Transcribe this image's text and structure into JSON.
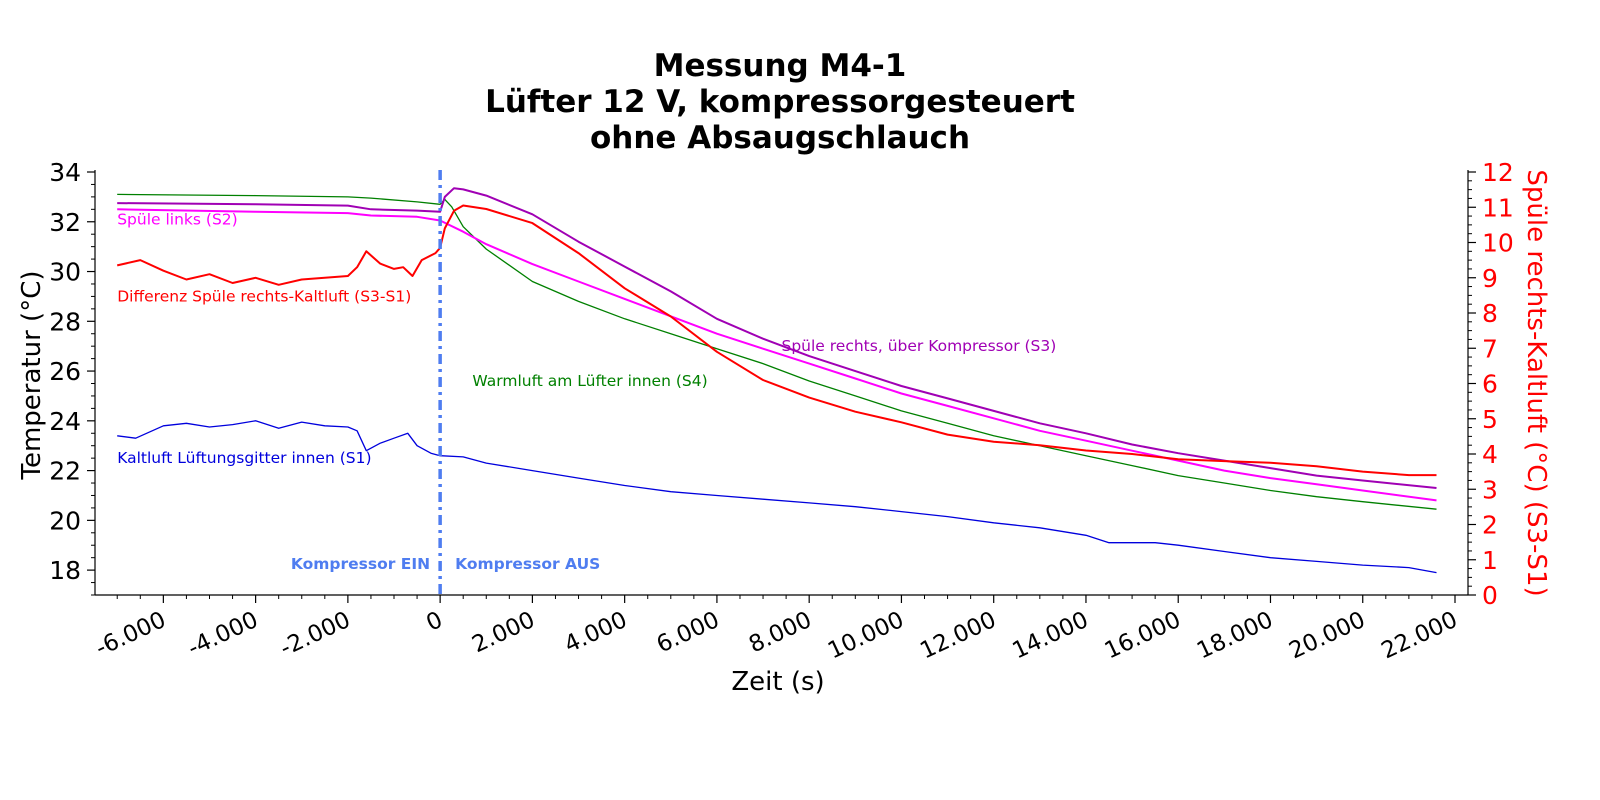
{
  "chart_data": {
    "type": "line",
    "title": [
      "Messung M4-1",
      "Lüfter 12 V, kompressorgesteuert",
      "ohne Absaugschlauch"
    ],
    "xlabel": "Zeit (s)",
    "ylabel": "Temperatur (°C)",
    "y2label": "Spüle rechts-Kaltluft (°C) (S3-S1)",
    "xlim": [
      -7200,
      22000
    ],
    "ylim": [
      17,
      34
    ],
    "y2lim": [
      0,
      12
    ],
    "x_ticks": [
      -6000,
      -4000,
      -2000,
      0,
      2000,
      4000,
      6000,
      8000,
      10000,
      12000,
      14000,
      16000,
      18000,
      20000,
      22000
    ],
    "x_tick_labels": [
      "-6.000",
      "-4.000",
      "-2.000",
      "0",
      "2.000",
      "4.000",
      "6.000",
      "8.000",
      "10.000",
      "12.000",
      "14.000",
      "16.000",
      "18.000",
      "20.000",
      "22.000"
    ],
    "y_ticks": [
      18,
      20,
      22,
      24,
      26,
      28,
      30,
      32,
      34
    ],
    "y2_ticks": [
      0,
      1,
      2,
      3,
      4,
      5,
      6,
      7,
      8,
      9,
      10,
      11,
      12
    ],
    "grid": false,
    "vline": {
      "x": 0,
      "color": "#4f7df0",
      "label_left": "Kompressor EIN",
      "label_right": "Kompressor AUS"
    },
    "series": [
      {
        "name": "Warmluft am Lüfter innen (S4)",
        "color": "#008000",
        "axis": "left",
        "points": [
          [
            -7000,
            33.1
          ],
          [
            -4000,
            33.05
          ],
          [
            -2000,
            33.0
          ],
          [
            -1500,
            32.95
          ],
          [
            -500,
            32.8
          ],
          [
            0,
            32.7
          ],
          [
            100,
            32.9
          ],
          [
            250,
            32.6
          ],
          [
            500,
            31.8
          ],
          [
            1000,
            30.9
          ],
          [
            2000,
            29.6
          ],
          [
            3000,
            28.8
          ],
          [
            4000,
            28.1
          ],
          [
            5000,
            27.5
          ],
          [
            6000,
            26.9
          ],
          [
            7000,
            26.3
          ],
          [
            8000,
            25.6
          ],
          [
            9000,
            25.0
          ],
          [
            10000,
            24.4
          ],
          [
            11000,
            23.9
          ],
          [
            12000,
            23.4
          ],
          [
            13000,
            23.0
          ],
          [
            14000,
            22.6
          ],
          [
            15000,
            22.2
          ],
          [
            16000,
            21.8
          ],
          [
            17000,
            21.5
          ],
          [
            18000,
            21.2
          ],
          [
            19000,
            20.95
          ],
          [
            20000,
            20.75
          ],
          [
            21600,
            20.45
          ]
        ]
      },
      {
        "name": "Spüle rechts, über Kompressor (S3)",
        "color": "#a000b4",
        "axis": "left",
        "points": [
          [
            -7000,
            32.75
          ],
          [
            -4000,
            32.7
          ],
          [
            -2000,
            32.65
          ],
          [
            -1500,
            32.5
          ],
          [
            -500,
            32.45
          ],
          [
            0,
            32.4
          ],
          [
            100,
            33.0
          ],
          [
            300,
            33.35
          ],
          [
            500,
            33.3
          ],
          [
            1000,
            33.05
          ],
          [
            2000,
            32.3
          ],
          [
            3000,
            31.2
          ],
          [
            4000,
            30.2
          ],
          [
            5000,
            29.2
          ],
          [
            6000,
            28.1
          ],
          [
            7000,
            27.3
          ],
          [
            8000,
            26.6
          ],
          [
            9000,
            26.0
          ],
          [
            10000,
            25.4
          ],
          [
            11000,
            24.9
          ],
          [
            12000,
            24.4
          ],
          [
            13000,
            23.9
          ],
          [
            14000,
            23.5
          ],
          [
            15000,
            23.05
          ],
          [
            16000,
            22.7
          ],
          [
            17000,
            22.4
          ],
          [
            18000,
            22.1
          ],
          [
            19000,
            21.8
          ],
          [
            20000,
            21.6
          ],
          [
            21600,
            21.3
          ]
        ]
      },
      {
        "name": "Spüle links (S2)",
        "color": "#ff00ff",
        "axis": "left",
        "points": [
          [
            -7000,
            32.5
          ],
          [
            -4000,
            32.4
          ],
          [
            -2000,
            32.35
          ],
          [
            -1500,
            32.25
          ],
          [
            -500,
            32.2
          ],
          [
            0,
            32.05
          ],
          [
            500,
            31.6
          ],
          [
            1000,
            31.1
          ],
          [
            2000,
            30.3
          ],
          [
            3000,
            29.6
          ],
          [
            4000,
            28.9
          ],
          [
            5000,
            28.2
          ],
          [
            6000,
            27.5
          ],
          [
            7000,
            26.9
          ],
          [
            8000,
            26.3
          ],
          [
            9000,
            25.7
          ],
          [
            10000,
            25.1
          ],
          [
            11000,
            24.6
          ],
          [
            12000,
            24.1
          ],
          [
            13000,
            23.6
          ],
          [
            14000,
            23.2
          ],
          [
            15000,
            22.8
          ],
          [
            16000,
            22.4
          ],
          [
            17000,
            22.0
          ],
          [
            18000,
            21.7
          ],
          [
            19000,
            21.45
          ],
          [
            20000,
            21.2
          ],
          [
            21600,
            20.8
          ]
        ]
      },
      {
        "name": "Kaltluft Lüftungsgitter innen (S1)",
        "color": "#0000dd",
        "axis": "left",
        "points": [
          [
            -7000,
            23.4
          ],
          [
            -6600,
            23.3
          ],
          [
            -6000,
            23.8
          ],
          [
            -5500,
            23.9
          ],
          [
            -5000,
            23.75
          ],
          [
            -4500,
            23.85
          ],
          [
            -4000,
            24.0
          ],
          [
            -3500,
            23.7
          ],
          [
            -3000,
            23.95
          ],
          [
            -2500,
            23.8
          ],
          [
            -2000,
            23.75
          ],
          [
            -1800,
            23.6
          ],
          [
            -1600,
            22.8
          ],
          [
            -1300,
            23.1
          ],
          [
            -1000,
            23.3
          ],
          [
            -700,
            23.5
          ],
          [
            -500,
            23.0
          ],
          [
            -200,
            22.7
          ],
          [
            0,
            22.6
          ],
          [
            500,
            22.55
          ],
          [
            1000,
            22.3
          ],
          [
            2000,
            22.0
          ],
          [
            3000,
            21.7
          ],
          [
            4000,
            21.4
          ],
          [
            5000,
            21.15
          ],
          [
            6000,
            21.0
          ],
          [
            7000,
            20.85
          ],
          [
            8000,
            20.7
          ],
          [
            9000,
            20.55
          ],
          [
            10000,
            20.35
          ],
          [
            11000,
            20.15
          ],
          [
            12000,
            19.9
          ],
          [
            13000,
            19.7
          ],
          [
            14000,
            19.4
          ],
          [
            14500,
            19.1
          ],
          [
            15500,
            19.1
          ],
          [
            16000,
            19.0
          ],
          [
            17000,
            18.75
          ],
          [
            18000,
            18.5
          ],
          [
            19000,
            18.35
          ],
          [
            20000,
            18.2
          ],
          [
            21000,
            18.1
          ],
          [
            21600,
            17.9
          ]
        ]
      },
      {
        "name": "Differenz Spüle rechts-Kaltluft (S3-S1)",
        "color": "#ff0000",
        "axis": "right",
        "points": [
          [
            -7000,
            9.35
          ],
          [
            -6500,
            9.5
          ],
          [
            -6000,
            9.2
          ],
          [
            -5500,
            8.95
          ],
          [
            -5000,
            9.1
          ],
          [
            -4500,
            8.85
          ],
          [
            -4000,
            9.0
          ],
          [
            -3500,
            8.8
          ],
          [
            -3000,
            8.95
          ],
          [
            -2500,
            9.0
          ],
          [
            -2000,
            9.05
          ],
          [
            -1800,
            9.3
          ],
          [
            -1600,
            9.75
          ],
          [
            -1300,
            9.4
          ],
          [
            -1000,
            9.25
          ],
          [
            -800,
            9.3
          ],
          [
            -600,
            9.05
          ],
          [
            -400,
            9.5
          ],
          [
            -100,
            9.7
          ],
          [
            0,
            9.85
          ],
          [
            100,
            10.4
          ],
          [
            300,
            10.9
          ],
          [
            500,
            11.05
          ],
          [
            1000,
            10.95
          ],
          [
            2000,
            10.55
          ],
          [
            3000,
            9.7
          ],
          [
            4000,
            8.7
          ],
          [
            5000,
            7.9
          ],
          [
            6000,
            6.9
          ],
          [
            7000,
            6.1
          ],
          [
            8000,
            5.6
          ],
          [
            9000,
            5.2
          ],
          [
            10000,
            4.9
          ],
          [
            11000,
            4.55
          ],
          [
            12000,
            4.35
          ],
          [
            13000,
            4.25
          ],
          [
            14000,
            4.1
          ],
          [
            15000,
            4.0
          ],
          [
            16000,
            3.85
          ],
          [
            17000,
            3.8
          ],
          [
            18000,
            3.75
          ],
          [
            19000,
            3.65
          ],
          [
            20000,
            3.5
          ],
          [
            21000,
            3.4
          ],
          [
            21600,
            3.4
          ]
        ]
      }
    ],
    "annotations": [
      {
        "text": "Spüle links (S2)",
        "color": "#ff00ff",
        "x": -7000,
        "y": 31.9
      },
      {
        "text": "Differenz Spüle rechts-Kaltluft (S3-S1)",
        "color": "#ff0000",
        "x": -7000,
        "y": 28.8
      },
      {
        "text": "Kaltluft Lüftungsgitter innen (S1)",
        "color": "#0000dd",
        "x": -7000,
        "y": 22.3
      },
      {
        "text": "Warmluft am Lüfter innen (S4)",
        "color": "#008000",
        "x": 700,
        "y": 25.4
      },
      {
        "text": "Spüle rechts, über Kompressor (S3)",
        "color": "#a000b4",
        "x": 7400,
        "y": 26.8
      }
    ]
  }
}
